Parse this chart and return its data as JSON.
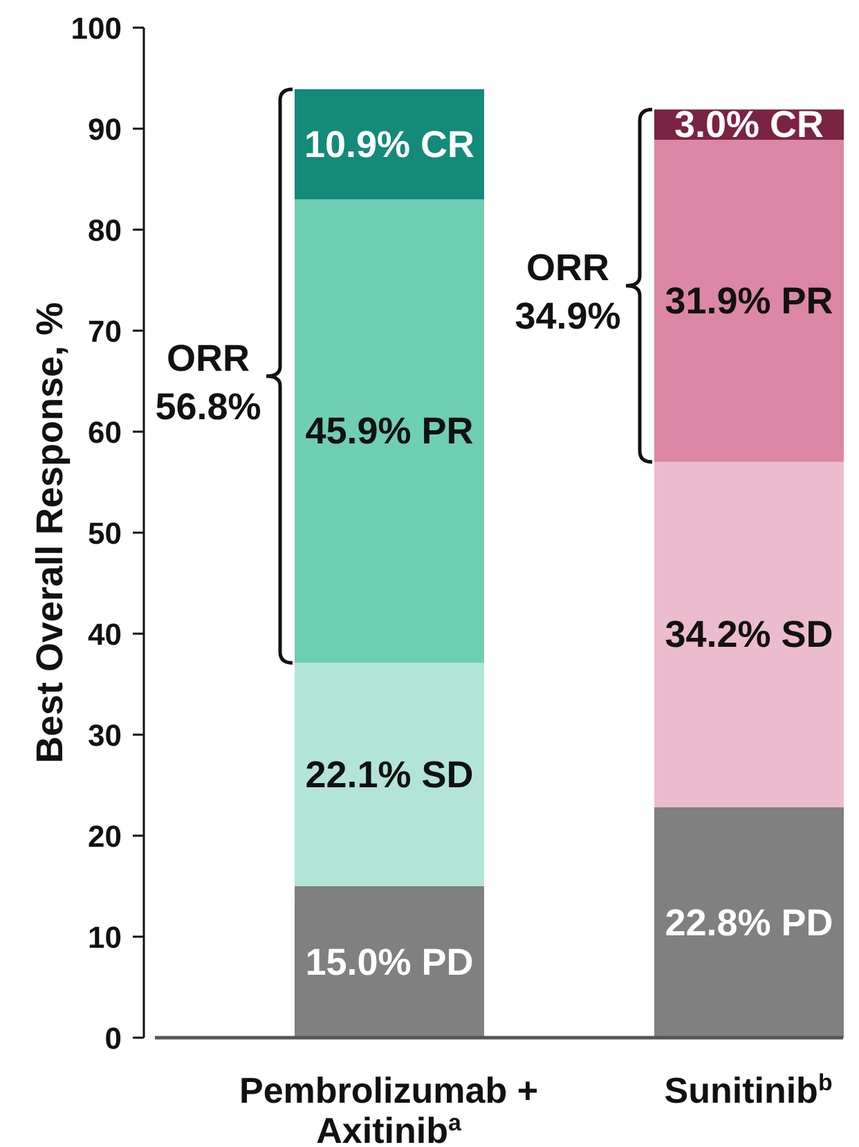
{
  "chart_data": {
    "type": "bar",
    "stacked": true,
    "categories": [
      "Pembrolizumab + Axitinib$^{a}$",
      "Sunitinib$^{b}$"
    ],
    "series": [
      {
        "colors": [
          "#808080",
          "#808080"
        ],
        "values": [
          15.0,
          22.8
        ],
        "value_labels": [
          "15.0% PD",
          "22.8% PD"
        ]
      },
      {
        "colors": [
          "#b2e5d7",
          "#ebbccd"
        ],
        "values": [
          22.1,
          34.2
        ],
        "value_labels": [
          "22.1% SD",
          "34.2% SD"
        ]
      },
      {
        "colors": [
          "#6fcfb2",
          "#dc87a5"
        ],
        "values": [
          45.9,
          31.9
        ],
        "value_labels": [
          "45.9% PR",
          "31.9% PR"
        ]
      },
      {
        "colors": [
          "#138a7a",
          "#7a2342"
        ],
        "values": [
          10.9,
          3.0
        ],
        "value_labels": [
          "10.9% CR",
          "3.0% CR"
        ]
      }
    ],
    "ylim": [
      0,
      100
    ],
    "yticks": [
      0,
      10,
      20,
      30,
      40,
      50,
      60,
      70,
      80,
      90,
      100
    ],
    "ylabel": "Best Overall Response, %",
    "annotations": [
      "ORR 56.8%",
      "ORR 34.9%"
    ]
  }
}
